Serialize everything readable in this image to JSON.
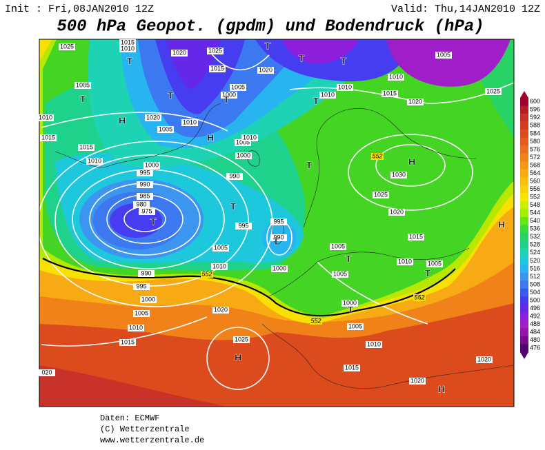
{
  "header": {
    "init": "Init : Fri,08JAN2010 12Z",
    "valid": "Valid: Thu,14JAN2010 12Z",
    "title": "500 hPa Geopot. (gpdm) und Bodendruck (hPa)"
  },
  "map": {
    "isobar_labels": [
      1025,
      1015,
      1010,
      1020,
      1025,
      1020,
      1015,
      1005,
      1000,
      1005,
      1010,
      1020,
      1010,
      1005,
      1015,
      1015,
      1010,
      1000,
      995,
      990,
      985,
      980,
      975,
      990,
      995,
      1000,
      1005,
      1010,
      1005,
      1010,
      990,
      995,
      1000,
      1005,
      1010,
      1015,
      1020,
      1025,
      995,
      990,
      1000,
      1005,
      1005,
      1000,
      1005,
      1010,
      1015,
      1010,
      1010,
      1015,
      1010,
      1020,
      1005,
      1025,
      1030,
      1025,
      1020,
      1015,
      1010,
      1005,
      1020,
      1020,
      "020"
    ],
    "contour_labels": [
      552,
      552,
      552,
      552
    ],
    "centers": [
      "T",
      "T",
      "T",
      "T",
      "T",
      "T",
      "T",
      "T",
      "T",
      "T",
      "T",
      "T",
      "T",
      "T",
      "T",
      "H",
      "H",
      "H",
      "H",
      "H",
      "H"
    ]
  },
  "colorbar": {
    "levels": [
      600,
      596,
      592,
      588,
      584,
      580,
      576,
      572,
      568,
      564,
      560,
      556,
      552,
      548,
      544,
      540,
      536,
      532,
      528,
      524,
      520,
      516,
      512,
      508,
      504,
      500,
      496,
      492,
      488,
      484,
      480,
      476
    ],
    "colors": [
      "#a0002a",
      "#b41e28",
      "#c83228",
      "#d23c23",
      "#dc4b1e",
      "#e65a1e",
      "#eb6e1e",
      "#f08219",
      "#f59619",
      "#f8aa14",
      "#fabe10",
      "#fad20a",
      "#f8e600",
      "#c8f000",
      "#a0f000",
      "#64e614",
      "#3cdc3c",
      "#28d264",
      "#1ed28c",
      "#1ed2b4",
      "#1ec8dc",
      "#28b4f0",
      "#3c96f0",
      "#3c78f0",
      "#3c5af0",
      "#463cf0",
      "#6428e6",
      "#8c1edc",
      "#a01ec8",
      "#9614aa",
      "#780a8c",
      "#50006e"
    ]
  },
  "footer": [
    "Daten: ECMWF",
    "(C) Wetterzentrale",
    "www.wetterzentrale.de"
  ]
}
